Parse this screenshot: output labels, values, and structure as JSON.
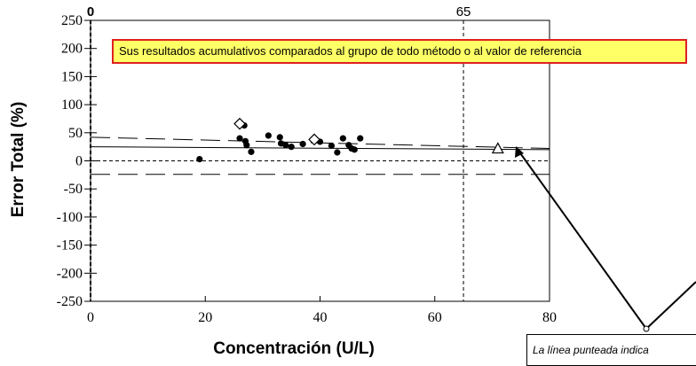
{
  "chart_data": {
    "type": "scatter",
    "xlabel": "Concentración (U/L)",
    "ylabel": "Error Total (%)",
    "xlim": [
      0,
      80
    ],
    "ylim": [
      -250,
      250
    ],
    "x_ticks": [
      "0",
      "20",
      "40",
      "60",
      "80"
    ],
    "y_ticks": [
      "250",
      "200",
      "150",
      "100",
      "50",
      "0",
      "-50",
      "-100",
      "-150",
      "-200",
      "-250"
    ],
    "top_markers": [
      {
        "x": 0,
        "label": "0"
      },
      {
        "x": 65,
        "label": "65"
      }
    ],
    "legend_text": "Sus resultados acumulativos comparados al grupo de todo método o al valor de referencia",
    "callout_text": "La línea punteada indica",
    "series": [
      {
        "marker": "filled-circle",
        "points": [
          [
            19,
            3
          ],
          [
            26,
            40
          ],
          [
            26.8,
            63
          ],
          [
            27,
            35
          ],
          [
            27.2,
            28
          ],
          [
            28,
            16
          ],
          [
            31,
            45
          ],
          [
            33,
            42
          ],
          [
            33.2,
            31
          ],
          [
            34,
            28
          ],
          [
            35,
            25
          ],
          [
            37,
            30
          ],
          [
            39,
            36
          ],
          [
            40,
            34
          ],
          [
            42,
            27
          ],
          [
            43,
            15
          ],
          [
            44,
            40
          ],
          [
            45,
            28
          ],
          [
            45.5,
            22
          ],
          [
            46,
            20
          ],
          [
            47,
            40
          ]
        ]
      },
      {
        "marker": "open-diamond",
        "points": [
          [
            26,
            66
          ],
          [
            39,
            38
          ]
        ]
      },
      {
        "marker": "open-triangle",
        "points": [
          [
            71,
            22
          ]
        ]
      }
    ],
    "reference_lines": [
      {
        "style": "solid",
        "points": [
          [
            0,
            25
          ],
          [
            80,
            20
          ]
        ]
      },
      {
        "style": "long-dash",
        "points": [
          [
            0,
            42
          ],
          [
            80,
            22
          ]
        ]
      },
      {
        "style": "long-dash",
        "points": [
          [
            0,
            -24
          ],
          [
            80,
            -24
          ]
        ]
      },
      {
        "style": "dashed",
        "points": [
          [
            0,
            0
          ],
          [
            80,
            0
          ]
        ]
      }
    ],
    "vertical_line": {
      "x": 65,
      "style": "dashed"
    }
  },
  "colors": {
    "axis": "#000000",
    "legend_bg": "#ffff66",
    "legend_border": "#e02020",
    "marker": "#000000"
  }
}
